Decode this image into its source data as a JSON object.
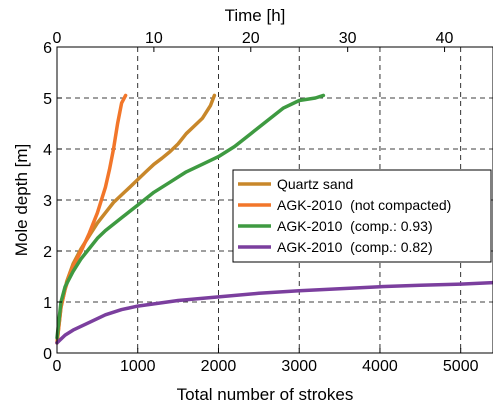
{
  "chart_data": {
    "type": "line",
    "xlabel": "Total number of strokes",
    "ylabel": "Mole depth [m]",
    "x2label": "Time [h]",
    "xlim": [
      0,
      5400
    ],
    "ylim": [
      0,
      6
    ],
    "x2lim": [
      0,
      45
    ],
    "xticks": [
      0,
      1000,
      2000,
      3000,
      4000,
      5000
    ],
    "yticks": [
      0,
      1,
      2,
      3,
      4,
      5,
      6
    ],
    "x2ticks": [
      0,
      10,
      20,
      30,
      40
    ],
    "grid": true,
    "legend_position": "right",
    "series": [
      {
        "name": "Quartz sand",
        "color": "#C8872A",
        "x": [
          0,
          50,
          120,
          200,
          300,
          400,
          500,
          600,
          700,
          800,
          900,
          1000,
          1100,
          1200,
          1300,
          1400,
          1500,
          1600,
          1700,
          1800,
          1900,
          1950
        ],
        "y": [
          0.2,
          0.9,
          1.4,
          1.75,
          2.05,
          2.3,
          2.55,
          2.75,
          2.95,
          3.1,
          3.25,
          3.4,
          3.55,
          3.7,
          3.82,
          3.95,
          4.1,
          4.3,
          4.45,
          4.6,
          4.85,
          5.05
        ]
      },
      {
        "name": "AGK-2010  (not compacted)",
        "color": "#F2762A",
        "x": [
          0,
          50,
          100,
          150,
          200,
          300,
          400,
          500,
          600,
          650,
          700,
          750,
          800,
          850
        ],
        "y": [
          0.2,
          0.9,
          1.25,
          1.5,
          1.7,
          2.0,
          2.35,
          2.75,
          3.25,
          3.6,
          4.0,
          4.5,
          4.9,
          5.05
        ]
      },
      {
        "name": "AGK-2010  (comp.: 0.93)",
        "color": "#3E9A41",
        "x": [
          0,
          50,
          100,
          200,
          300,
          400,
          500,
          600,
          800,
          1000,
          1200,
          1400,
          1600,
          1800,
          2000,
          2200,
          2400,
          2600,
          2800,
          3000,
          3200,
          3300
        ],
        "y": [
          0.3,
          1.0,
          1.3,
          1.6,
          1.85,
          2.05,
          2.25,
          2.4,
          2.65,
          2.9,
          3.15,
          3.35,
          3.55,
          3.7,
          3.85,
          4.05,
          4.3,
          4.55,
          4.8,
          4.95,
          5.0,
          5.05
        ]
      },
      {
        "name": "AGK-2010  (comp.: 0.82)",
        "color": "#7B3F9E",
        "x": [
          0,
          100,
          200,
          400,
          600,
          800,
          1000,
          1500,
          2000,
          2500,
          3000,
          3500,
          4000,
          4500,
          5000,
          5400
        ],
        "y": [
          0.2,
          0.35,
          0.45,
          0.6,
          0.75,
          0.85,
          0.92,
          1.03,
          1.1,
          1.17,
          1.22,
          1.26,
          1.3,
          1.33,
          1.35,
          1.38
        ]
      }
    ]
  }
}
